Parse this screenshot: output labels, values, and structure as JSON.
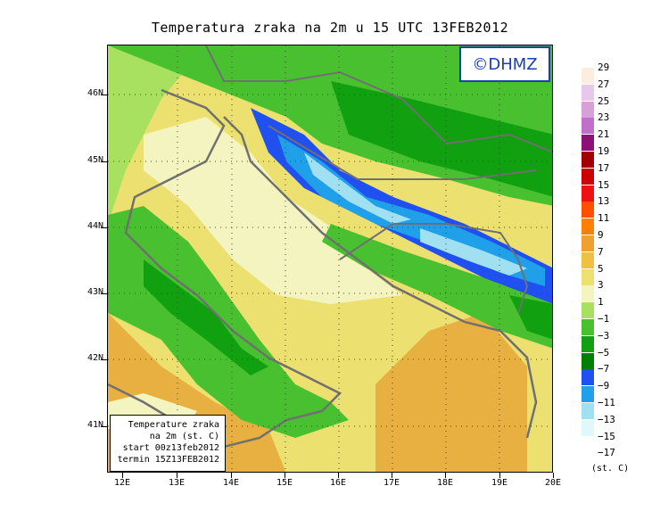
{
  "title": "Temperatura zraka na 2m u 15 UTC 13FEB2012",
  "logo": "©DHMZ",
  "y_axis": [
    "46N",
    "45N",
    "44N",
    "43N",
    "42N",
    "41N"
  ],
  "x_axis": [
    "12E",
    "13E",
    "14E",
    "15E",
    "16E",
    "17E",
    "18E",
    "19E",
    "20E"
  ],
  "info": {
    "line1": "Temperature zraka",
    "line2": "na 2m (st. C)",
    "line3": "start 00z13feb2012",
    "line4": "termin 15Z13FEB2012"
  },
  "legend": {
    "labels": [
      "29",
      "27",
      "25",
      "23",
      "21",
      "19",
      "17",
      "15",
      "13",
      "11",
      "9",
      "7",
      "5",
      "3",
      "1",
      "−1",
      "−3",
      "−5",
      "−7",
      "−9",
      "−11",
      "−13",
      "−15",
      "−17"
    ],
    "colors": [
      "#fbeee0",
      "#e8c8e8",
      "#d8a0d8",
      "#c070c8",
      "#8c1078",
      "#a00000",
      "#cc0000",
      "#ee1111",
      "#ff4f00",
      "#ff8000",
      "#f0a030",
      "#f0c040",
      "#ece070",
      "#f4f4c0",
      "#a8e060",
      "#48c030",
      "#10a010",
      "#008000",
      "#2050f0",
      "#20a0e8",
      "#a0e0f0",
      "#e0f8fc",
      "#ffffff"
    ],
    "unit": "(st. C)"
  }
}
